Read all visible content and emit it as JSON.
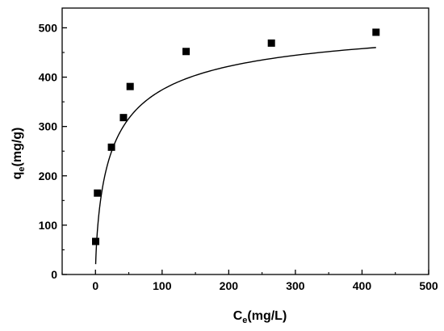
{
  "chart_data": {
    "type": "scatter",
    "xlabel": {
      "main": "C",
      "sub": "e",
      "unit": "(mg/L)"
    },
    "ylabel": {
      "main": "q",
      "sub": "e",
      "unit": "(mg/g)"
    },
    "xlim": [
      -50,
      500
    ],
    "ylim": [
      0,
      540
    ],
    "xticks": [
      0,
      100,
      200,
      300,
      400,
      500
    ],
    "yticks": [
      0,
      100,
      200,
      300,
      400,
      500
    ],
    "grid": false,
    "legend": "none",
    "marker": "square",
    "color": "#000000",
    "series": [
      {
        "points": [
          {
            "x": 0.3,
            "y": 67
          },
          {
            "x": 3,
            "y": 165
          },
          {
            "x": 24,
            "y": 258
          },
          {
            "x": 42,
            "y": 318
          },
          {
            "x": 52,
            "y": 381
          },
          {
            "x": 136,
            "y": 452
          },
          {
            "x": 264,
            "y": 469
          },
          {
            "x": 421,
            "y": 491
          }
        ]
      }
    ],
    "fit_curve": {
      "model": "Freundlich-Langmuir",
      "type": "line",
      "qmax": 530,
      "K": 0.035,
      "n": 0.7
    }
  }
}
